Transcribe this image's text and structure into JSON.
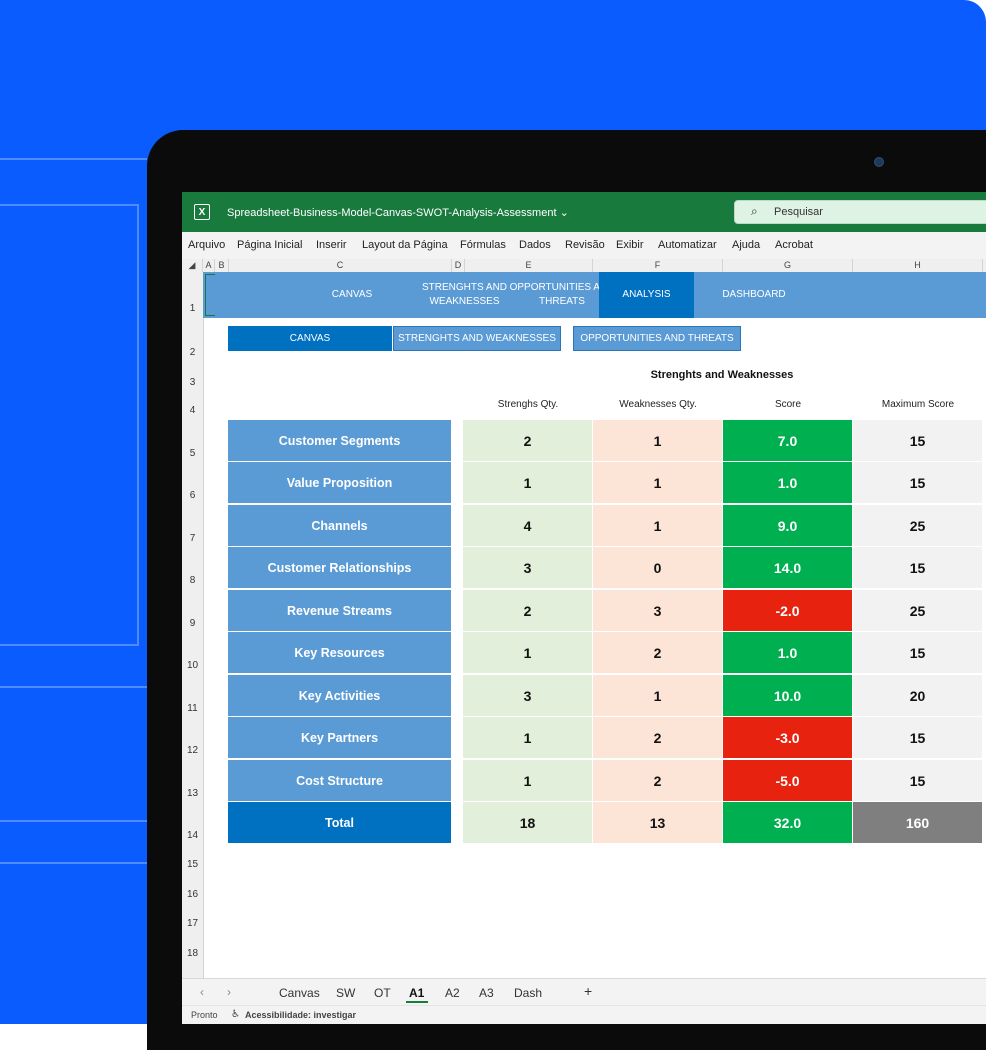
{
  "window": {
    "title": "Spreadsheet-Business-Model-Canvas-SWOT-Analysis-Assessment",
    "title_chevron": "⌄",
    "search_placeholder": "Pesquisar"
  },
  "menu": [
    "Arquivo",
    "Página Inicial",
    "Inserir",
    "Layout da Página",
    "Fórmulas",
    "Dados",
    "Revisão",
    "Exibir",
    "Automatizar",
    "Ajuda",
    "Acrobat"
  ],
  "column_headers": [
    "A",
    "B",
    "C",
    "D",
    "E",
    "F",
    "G",
    "H"
  ],
  "row_headers": [
    "1",
    "2",
    "3",
    "4",
    "5",
    "6",
    "7",
    "8",
    "9",
    "10",
    "11",
    "12",
    "13",
    "14",
    "15",
    "16",
    "17",
    "18"
  ],
  "nav": {
    "canvas": "CANVAS",
    "strengths_weaknesses": "STRENGHTS AND WEAKNESSES",
    "opportunities_threats": "OPPORTUNITIES AND THREATS",
    "analysis": "ANALYSIS",
    "dashboard": "DASHBOARD"
  },
  "subtabs": {
    "canvas": "CANVAS",
    "strengths_weaknesses": "STRENGHTS AND WEAKNESSES",
    "opportunities_threats": "OPPORTUNITIES AND THREATS"
  },
  "table": {
    "title": "Strenghts and Weaknesses",
    "headers": {
      "strengths": "Strenghs Qty.",
      "weaknesses": "Weaknesses Qty.",
      "score": "Score",
      "max": "Maximum Score"
    },
    "rows": [
      {
        "label": "Customer Segments",
        "strengths": "2",
        "weaknesses": "1",
        "score": "7.0",
        "max": "15"
      },
      {
        "label": "Value Proposition",
        "strengths": "1",
        "weaknesses": "1",
        "score": "1.0",
        "max": "15"
      },
      {
        "label": "Channels",
        "strengths": "4",
        "weaknesses": "1",
        "score": "9.0",
        "max": "25"
      },
      {
        "label": "Customer Relationships",
        "strengths": "3",
        "weaknesses": "0",
        "score": "14.0",
        "max": "15"
      },
      {
        "label": "Revenue Streams",
        "strengths": "2",
        "weaknesses": "3",
        "score": "-2.0",
        "max": "25"
      },
      {
        "label": "Key Resources",
        "strengths": "1",
        "weaknesses": "2",
        "score": "1.0",
        "max": "15"
      },
      {
        "label": "Key Activities",
        "strengths": "3",
        "weaknesses": "1",
        "score": "10.0",
        "max": "20"
      },
      {
        "label": "Key Partners",
        "strengths": "1",
        "weaknesses": "2",
        "score": "-3.0",
        "max": "15"
      },
      {
        "label": "Cost Structure",
        "strengths": "1",
        "weaknesses": "2",
        "score": "-5.0",
        "max": "15"
      },
      {
        "label": "Total",
        "strengths": "18",
        "weaknesses": "13",
        "score": "32.0",
        "max": "160"
      }
    ],
    "colors": {
      "positive": "#00b050",
      "negative": "#e7220f"
    }
  },
  "sheet_tabs": {
    "prev": "‹",
    "next": "›",
    "tabs": [
      "Canvas",
      "SW",
      "OT",
      "A1",
      "A2",
      "A3",
      "Dash"
    ],
    "active": "A1",
    "add": "+"
  },
  "status": {
    "ready": "Pronto",
    "accessibility": "Acessibilidade: investigar"
  }
}
